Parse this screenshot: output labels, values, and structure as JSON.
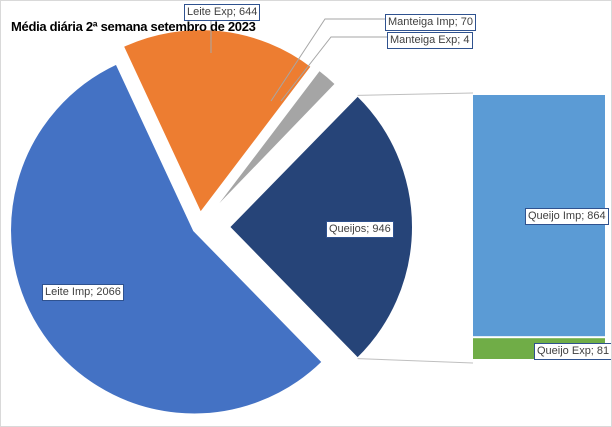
{
  "chart_data": {
    "type": "pie-of-bar",
    "title": "Média diária 2ª semana setembro de 2023",
    "pie": [
      {
        "name": "Queijos",
        "value": 946,
        "label": "Queijos; 946",
        "color": "#264478"
      },
      {
        "name": "Leite Imp",
        "value": 2066,
        "label": "Leite Imp; 2066",
        "color": "#4472c4"
      },
      {
        "name": "Leite Exp",
        "value": 644,
        "label": "Leite Exp; 644",
        "color": "#ed7d31"
      },
      {
        "name": "Manteiga Imp",
        "value": 70,
        "label": "Manteiga Imp; 70",
        "color": "#a5a5a5"
      },
      {
        "name": "Manteiga Exp",
        "value": 4,
        "label": "Manteiga Exp; 4",
        "color": "#ffc000"
      }
    ],
    "bar": [
      {
        "name": "Queijo Imp",
        "value": 864,
        "label": "Queijo Imp; 864",
        "color": "#5b9bd5"
      },
      {
        "name": "Queijo Exp",
        "value": 81,
        "label": "Queijo Exp; 81",
        "color": "#70ad47"
      }
    ]
  }
}
